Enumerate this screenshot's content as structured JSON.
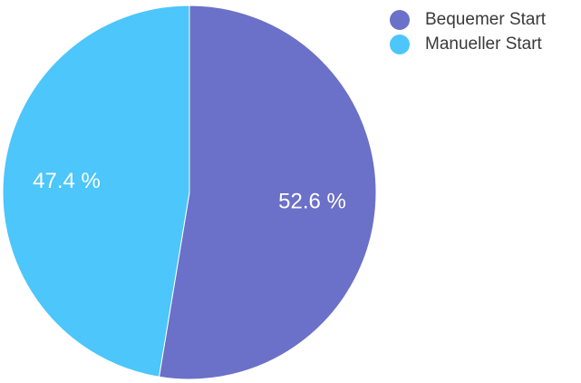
{
  "chart_data": {
    "type": "pie",
    "slices": [
      {
        "name": "Bequemer Start",
        "value": 52.6,
        "label": "52.6 %",
        "color": "#6b70c8"
      },
      {
        "name": "Manueller Start",
        "value": 47.4,
        "label": "47.4 %",
        "color": "#4cc6fb"
      }
    ],
    "legend_position": "top-right",
    "start_angle": "top",
    "direction": "clockwise"
  }
}
